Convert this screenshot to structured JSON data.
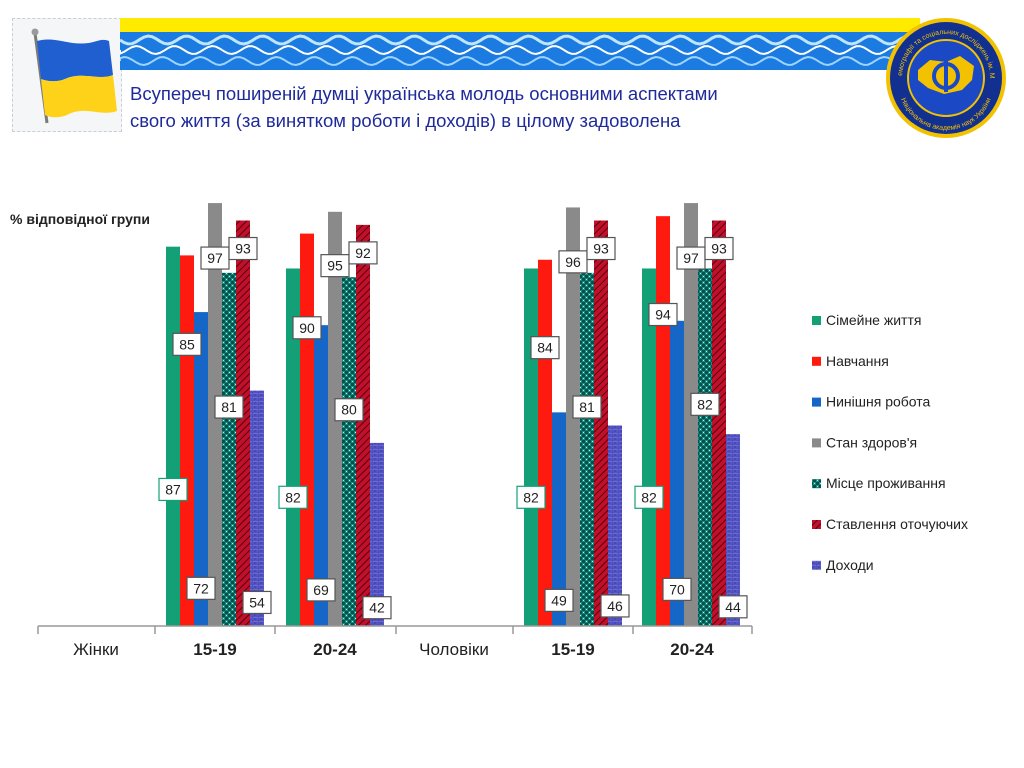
{
  "slide": {
    "title_line1": "Всупереч поширеній думці українська молодь основними аспектами",
    "title_line2": "свого життя (за винятком роботи і доходів) в цілому задоволена"
  },
  "emblem": {
    "ring_text_top": "Інститут демографії та соціальних досліджень ім. М.В. Птухи",
    "ring_text_bottom": "Національна академія наук України"
  },
  "chart_data": {
    "type": "bar",
    "ylabel": "% відповідної групи",
    "ylim": [
      0,
      100
    ],
    "grid": false,
    "legend_position": "right",
    "groups": [
      {
        "label": "Жінки",
        "categories": [
          "15-19",
          "20-24"
        ]
      },
      {
        "label": "Чоловіки",
        "categories": [
          "15-19",
          "20-24"
        ]
      }
    ],
    "series": [
      {
        "name": "Сімейне життя",
        "color": "#14a077",
        "pattern": "solid",
        "values": [
          87,
          82,
          82,
          82
        ]
      },
      {
        "name": "Навчання",
        "color": "#ff1a10",
        "pattern": "solid",
        "values": [
          85,
          90,
          84,
          94
        ]
      },
      {
        "name": "Нинішня робота",
        "color": "#1566c6",
        "pattern": "solid",
        "values": [
          72,
          69,
          49,
          70
        ]
      },
      {
        "name": "Стан здоров'я",
        "color": "#8a8a8a",
        "pattern": "solid",
        "values": [
          97,
          95,
          96,
          97
        ]
      },
      {
        "name": "Місце проживання",
        "color": "#0f8f84",
        "pattern": "checker",
        "values": [
          81,
          80,
          81,
          82
        ]
      },
      {
        "name": "Ставлення оточуючих",
        "color": "#c0102a",
        "pattern": "hatch",
        "values": [
          93,
          92,
          93,
          93
        ]
      },
      {
        "name": "Доходи",
        "color": "#5a5ad0",
        "pattern": "brick",
        "values": [
          54,
          42,
          46,
          44
        ]
      }
    ]
  }
}
